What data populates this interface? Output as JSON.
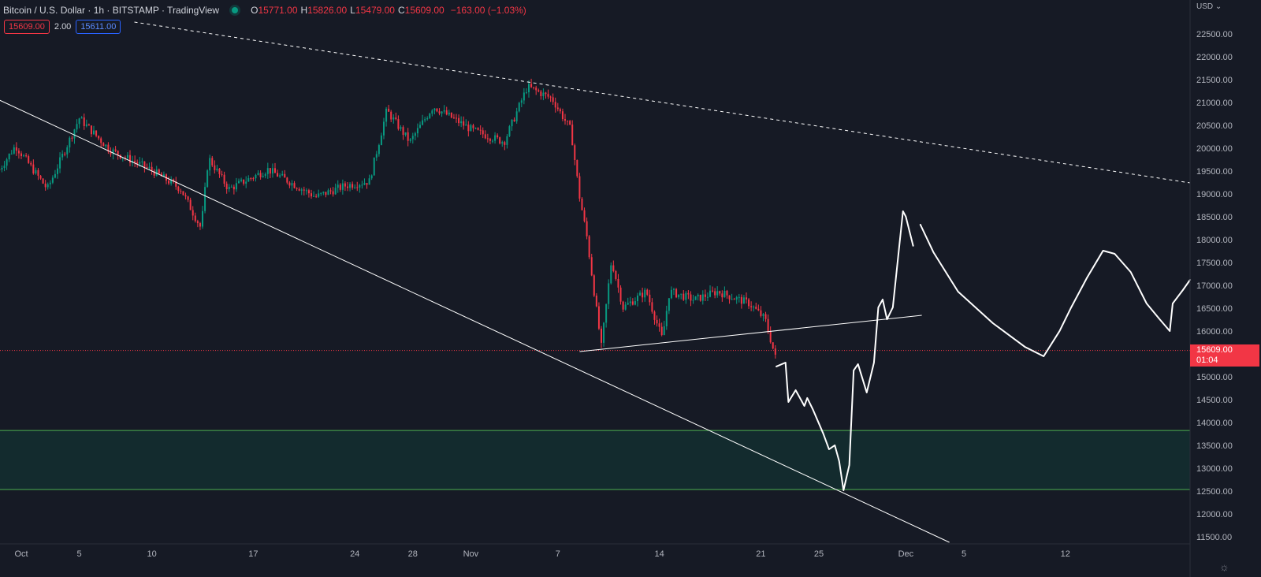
{
  "header": {
    "title": "Bitcoin / U.S. Dollar · 1h · BITSTAMP · TradingView",
    "ohlc": [
      {
        "k": "O",
        "v": "15771.00"
      },
      {
        "k": "H",
        "v": "15826.00"
      },
      {
        "k": "L",
        "v": "15479.00"
      },
      {
        "k": "C",
        "v": "15609.00"
      }
    ],
    "change": "−163.00 (−1.03%)",
    "sell": "15609.00",
    "spread": "2.00",
    "buy": "15611.00"
  },
  "axis": {
    "currency": "USD",
    "last_price": "15609.00",
    "countdown": "01:04"
  },
  "colors": {
    "bg": "#161a25",
    "up": "#089981",
    "down": "#f23645",
    "zone": "#132b2e",
    "zone_edge": "#4caf50",
    "drawing": "#ffffff"
  },
  "chart_data": {
    "type": "candlestick",
    "title": "Bitcoin / U.S. Dollar · 1h · BITSTAMP",
    "ylim": [
      11250,
      23250
    ],
    "yticks": [
      11500,
      12000,
      12500,
      13000,
      13500,
      14000,
      14500,
      15000,
      15500,
      16000,
      16500,
      17000,
      17500,
      18000,
      18500,
      19000,
      19500,
      20000,
      20500,
      21000,
      21500,
      22000,
      22500
    ],
    "xlim_days_from_oct1": [
      -1.5,
      81
    ],
    "xticks": [
      {
        "day": 0,
        "label": "Oct"
      },
      {
        "day": 4,
        "label": "5"
      },
      {
        "day": 9,
        "label": "10"
      },
      {
        "day": 16,
        "label": "17"
      },
      {
        "day": 23,
        "label": "24"
      },
      {
        "day": 27,
        "label": "28"
      },
      {
        "day": 31,
        "label": "Nov"
      },
      {
        "day": 37,
        "label": "7"
      },
      {
        "day": 44,
        "label": "14"
      },
      {
        "day": 51,
        "label": "21"
      },
      {
        "day": 55,
        "label": "25"
      },
      {
        "day": 61,
        "label": "Dec"
      },
      {
        "day": 65,
        "label": "5"
      },
      {
        "day": 72,
        "label": "12"
      }
    ],
    "last_price": 15609,
    "price_path": [
      [
        -1.5,
        19570
      ],
      [
        -0.4,
        20090
      ],
      [
        1.8,
        19140
      ],
      [
        4,
        20690
      ],
      [
        6.1,
        20000
      ],
      [
        8.9,
        19570
      ],
      [
        11,
        19140
      ],
      [
        12.4,
        18280
      ],
      [
        12.9,
        19830
      ],
      [
        14.3,
        19140
      ],
      [
        17,
        19570
      ],
      [
        20.3,
        18970
      ],
      [
        22.4,
        19220
      ],
      [
        24,
        19310
      ],
      [
        25.2,
        20860
      ],
      [
        26.8,
        20170
      ],
      [
        28.4,
        20950
      ],
      [
        31.1,
        20430
      ],
      [
        33.3,
        20170
      ],
      [
        34.9,
        21380
      ],
      [
        36.6,
        21120
      ],
      [
        37.9,
        20430
      ],
      [
        38.5,
        18970
      ],
      [
        39,
        18100
      ],
      [
        40,
        15690
      ],
      [
        40.7,
        17590
      ],
      [
        41.5,
        16550
      ],
      [
        43.1,
        16900
      ],
      [
        44.2,
        15860
      ],
      [
        44.7,
        16900
      ],
      [
        46.4,
        16720
      ],
      [
        48,
        16900
      ],
      [
        50.2,
        16640
      ],
      [
        51.3,
        16290
      ],
      [
        52.1,
        15340
      ]
    ],
    "drawings": {
      "dashed_resistance": [
        [
          7.8,
          22793
        ],
        [
          80.6,
          19276
        ]
      ],
      "descending_trendline": [
        [
          -1.5,
          21086
        ],
        [
          64,
          11414
        ]
      ],
      "support_line": [
        [
          38.5,
          15586
        ],
        [
          62.1,
          16379
        ]
      ],
      "demand_zone": {
        "from": 12570,
        "to": 13860
      },
      "projection_1": [
        [
          52.07,
          15259
        ],
        [
          52.7,
          15345
        ],
        [
          52.9,
          14483
        ],
        [
          53.4,
          14742
        ],
        [
          54.0,
          14397
        ],
        [
          54.2,
          14570
        ],
        [
          54.6,
          14311
        ],
        [
          55.3,
          13794
        ],
        [
          55.7,
          13449
        ],
        [
          56.1,
          13535
        ],
        [
          56.4,
          13190
        ],
        [
          56.7,
          12552
        ],
        [
          57.1,
          13104
        ],
        [
          57.4,
          15173
        ],
        [
          57.7,
          15311
        ],
        [
          58.3,
          14690
        ],
        [
          58.8,
          15345
        ],
        [
          59.1,
          16552
        ],
        [
          59.4,
          16725
        ],
        [
          59.7,
          16293
        ],
        [
          60.1,
          16552
        ],
        [
          60.5,
          17759
        ],
        [
          60.8,
          18655
        ],
        [
          61.0,
          18535
        ],
        [
          61.5,
          17900
        ]
      ],
      "projection_2": [
        [
          62.0,
          18362
        ],
        [
          62.9,
          17759
        ],
        [
          64.6,
          16897
        ],
        [
          67.0,
          16207
        ],
        [
          69.2,
          15690
        ],
        [
          70.5,
          15483
        ],
        [
          71.6,
          16035
        ],
        [
          72.4,
          16552
        ],
        [
          73.5,
          17207
        ],
        [
          74.6,
          17793
        ],
        [
          75.4,
          17724
        ],
        [
          76.5,
          17328
        ],
        [
          77.6,
          16638
        ],
        [
          78.5,
          16293
        ],
        [
          79.2,
          16035
        ],
        [
          79.4,
          16638
        ],
        [
          80.1,
          16931
        ],
        [
          80.6,
          17155
        ]
      ]
    }
  }
}
